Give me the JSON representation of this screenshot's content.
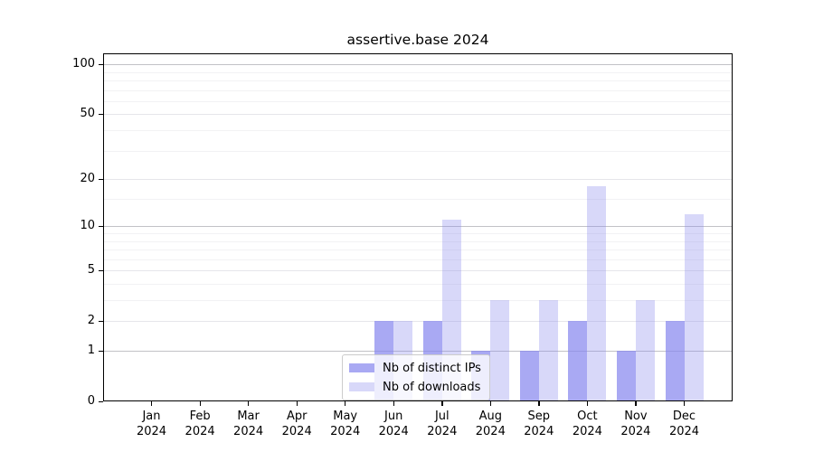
{
  "title": "assertive.base 2024",
  "chart_data": {
    "type": "bar",
    "title": "assertive.base 2024",
    "categories": [
      "Jan",
      "Feb",
      "Mar",
      "Apr",
      "May",
      "Jun",
      "Jul",
      "Aug",
      "Sep",
      "Oct",
      "Nov",
      "Dec"
    ],
    "year": "2024",
    "series": [
      {
        "name": "Nb of distinct IPs",
        "fill": "rgba(136,136,238,0.72)",
        "fill_hex": "#a9a9f3",
        "values": [
          0,
          0,
          0,
          0,
          0,
          2,
          2,
          1,
          1,
          2,
          1,
          2
        ]
      },
      {
        "name": "Nb of downloads",
        "fill": "rgba(136,136,238,0.33)",
        "fill_hex": "#d8d8f8",
        "values": [
          0,
          0,
          0,
          0,
          0,
          2,
          11,
          3,
          3,
          18,
          3,
          12
        ]
      }
    ],
    "yscale": "log1p",
    "ylim": [
      0,
      117
    ],
    "yticks": [
      0,
      1,
      2,
      5,
      10,
      20,
      50,
      100
    ],
    "decade_gridlines": [
      1,
      10,
      100
    ],
    "minor_gridlines": [
      3,
      4,
      6,
      7,
      8,
      9,
      15,
      30,
      40,
      60,
      70,
      80,
      90
    ],
    "grid": true,
    "legend_position": "lower center"
  },
  "colors": {
    "grid_decade": "#c2c2c6",
    "grid_major": "#e6e6ea",
    "grid_minor": "#f2f2f4",
    "spine": "#000000"
  }
}
